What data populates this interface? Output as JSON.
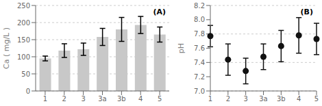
{
  "chart_data": [
    {
      "type": "bar",
      "categories": [
        "1",
        "2",
        "3",
        "3a",
        "3b",
        "4",
        "5"
      ],
      "values": [
        95,
        118,
        122,
        158,
        180,
        193,
        165
      ],
      "errors": [
        7,
        20,
        18,
        25,
        35,
        25,
        22
      ],
      "color": "#c8c8c8",
      "y_label": "Ca ( mg/L )",
      "ylim": [
        0,
        250
      ],
      "yticks": [
        0,
        50,
        100,
        150,
        200,
        250
      ],
      "grid": true,
      "annotations": [
        "(A)"
      ]
    },
    {
      "type": "scatter",
      "categories": [
        "1",
        "2",
        "3",
        "3a",
        "3b",
        "4",
        "5"
      ],
      "values": [
        7.77,
        7.44,
        7.28,
        7.48,
        7.63,
        7.78,
        7.73
      ],
      "errors": [
        0.15,
        0.22,
        0.18,
        0.18,
        0.22,
        0.25,
        0.22
      ],
      "color": "#111111",
      "y_label": "pH",
      "ylim": [
        7.0,
        8.2
      ],
      "yticks": [
        {
          "value": 7.0,
          "label": "7.0"
        },
        7.2,
        7.4,
        7.6,
        7.8,
        {
          "value": 8.0,
          "label": "8.0"
        },
        8.2
      ],
      "grid": true,
      "annotations": [
        "(B)"
      ]
    }
  ]
}
